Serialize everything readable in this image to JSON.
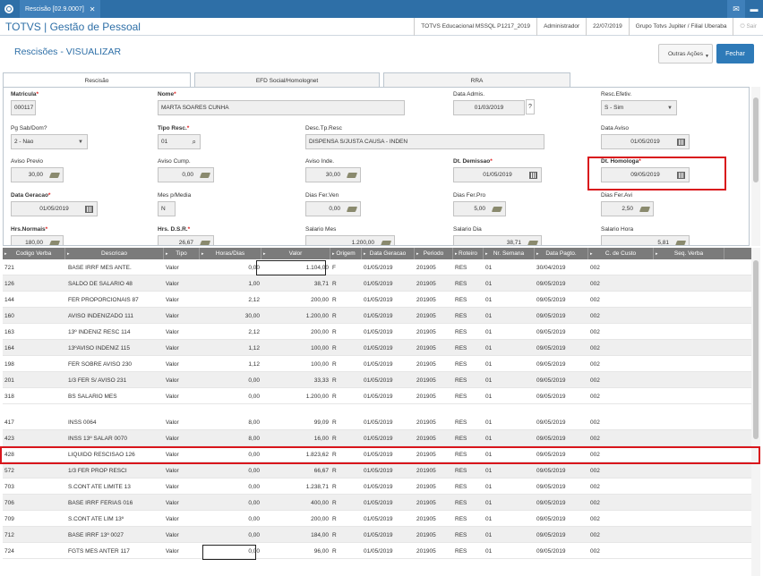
{
  "topbar": {
    "tab_label": "Rescisão [02.9.0007]"
  },
  "header": {
    "brand": "TOTVS | Gestão de Pessoal",
    "environment": "TOTVS Educacional MSSQL P1217_2019",
    "user": "Administrador",
    "date": "22/07/2019",
    "branch": "Grupo Totvs Jupiter / Filial Uberaba",
    "logout": "Sair"
  },
  "page": {
    "title": "Rescisões - VISUALIZAR"
  },
  "buttons": {
    "other_actions": "Outras Ações",
    "close": "Fechar"
  },
  "tabs": [
    "Rescisão",
    "EFD Social/Homolognet",
    "RRA"
  ],
  "form": {
    "matricula": {
      "label": "Matricula",
      "value": "000117"
    },
    "nome": {
      "label": "Nome",
      "value": "MARTA SOARES CUNHA"
    },
    "data_admis": {
      "label": "Data Admis.",
      "value": "01/03/2019",
      "help": "?"
    },
    "resc_efetiv": {
      "label": "Resc.Efetiv.",
      "value": "S - Sim"
    },
    "pg_sab_dom": {
      "label": "Pg Sab/Dom?",
      "value": "2 - Nao"
    },
    "tipo_resc": {
      "label": "Tipo Resc.",
      "value": "01"
    },
    "desc_tp_resc": {
      "label": "Desc.Tp.Resc",
      "value": "DISPENSA S/JUSTA CAUSA - INDEN"
    },
    "data_aviso": {
      "label": "Data Aviso",
      "value": "01/05/2019"
    },
    "aviso_previo": {
      "label": "Aviso Previo",
      "value": "30,00"
    },
    "aviso_cump": {
      "label": "Aviso Cump.",
      "value": "0,00"
    },
    "aviso_inde": {
      "label": "Aviso Inde.",
      "value": "30,00"
    },
    "dt_demissao": {
      "label": "Dt. Demissao",
      "value": "01/05/2019"
    },
    "dt_homologa": {
      "label": "Dt. Homologa",
      "value": "09/05/2019"
    },
    "data_geracao": {
      "label": "Data Geracao",
      "value": "01/05/2019"
    },
    "mes_media": {
      "label": "Mes p/Media",
      "value": "N"
    },
    "dias_fer_ven": {
      "label": "Dias Fer.Ven",
      "value": "0,00"
    },
    "dias_fer_pro": {
      "label": "Dias Fer.Pro",
      "value": "5,00"
    },
    "dias_fer_avi": {
      "label": "Dias Fer.Avi",
      "value": "2,50"
    },
    "hrs_normais": {
      "label": "Hrs.Normais",
      "value": "180,00"
    },
    "hrs_dsr": {
      "label": "Hrs. D.S.R.",
      "value": "26,67"
    },
    "salario_mes": {
      "label": "Salario Mes",
      "value": "1.200,00"
    },
    "salario_dia": {
      "label": "Salario Dia",
      "value": "38,71"
    },
    "salario_hora": {
      "label": "Salario Hora",
      "value": "5,81"
    }
  },
  "grid": {
    "columns": [
      "Codigo Verba",
      "Descricao",
      "Tipo",
      "Horas/Dias",
      "Valor",
      "Origem",
      "Data Geracao",
      "Periodo",
      "Roteiro",
      "Nr. Semana",
      "Data Pagto.",
      "C. de Custo",
      "Seq. Verba"
    ],
    "rows_top": [
      [
        "721",
        "BASE IRRF MES ANTE.",
        "Valor",
        "0,00",
        "1.104,00",
        "F",
        "01/05/2019",
        "201905",
        "RES",
        "01",
        "30/04/2019",
        "002",
        ""
      ],
      [
        "126",
        "SALDO DE SALARIO 48",
        "Valor",
        "1,00",
        "38,71",
        "R",
        "01/05/2019",
        "201905",
        "RES",
        "01",
        "09/05/2019",
        "002",
        ""
      ],
      [
        "144",
        "FER PROPORCIONAIS 87",
        "Valor",
        "2,12",
        "200,00",
        "R",
        "01/05/2019",
        "201905",
        "RES",
        "01",
        "09/05/2019",
        "002",
        ""
      ],
      [
        "160",
        "AVISO INDENIZADO 111",
        "Valor",
        "30,00",
        "1.200,00",
        "R",
        "01/05/2019",
        "201905",
        "RES",
        "01",
        "09/05/2019",
        "002",
        ""
      ],
      [
        "163",
        "13º INDENIZ RESC 114",
        "Valor",
        "2,12",
        "200,00",
        "R",
        "01/05/2019",
        "201905",
        "RES",
        "01",
        "09/05/2019",
        "002",
        ""
      ],
      [
        "164",
        "13ºAVISO INDENIZ 115",
        "Valor",
        "1,12",
        "100,00",
        "R",
        "01/05/2019",
        "201905",
        "RES",
        "01",
        "09/05/2019",
        "002",
        ""
      ],
      [
        "198",
        "FER SOBRE AVISO 230",
        "Valor",
        "1,12",
        "100,00",
        "R",
        "01/05/2019",
        "201905",
        "RES",
        "01",
        "09/05/2019",
        "002",
        ""
      ],
      [
        "201",
        "1/3 FER S/ AVISO 231",
        "Valor",
        "0,00",
        "33,33",
        "R",
        "01/05/2019",
        "201905",
        "RES",
        "01",
        "09/05/2019",
        "002",
        ""
      ],
      [
        "318",
        "BS SALARIO MES",
        "Valor",
        "0,00",
        "1.200,00",
        "R",
        "01/05/2019",
        "201905",
        "RES",
        "01",
        "09/05/2019",
        "002",
        ""
      ]
    ],
    "rows_bottom": [
      [
        "417",
        "INSS 0064",
        "Valor",
        "8,00",
        "99,09",
        "R",
        "01/05/2019",
        "201905",
        "RES",
        "01",
        "09/05/2019",
        "002",
        ""
      ],
      [
        "423",
        "INSS 13º SALAR 0070",
        "Valor",
        "8,00",
        "16,00",
        "R",
        "01/05/2019",
        "201905",
        "RES",
        "01",
        "09/05/2019",
        "002",
        ""
      ],
      [
        "428",
        "LIQUIDO RESCISAO 126",
        "Valor",
        "0,00",
        "1.823,62",
        "R",
        "01/05/2019",
        "201905",
        "RES",
        "01",
        "09/05/2019",
        "002",
        ""
      ],
      [
        "572",
        "1/3 FER PROP RESCI",
        "Valor",
        "0,00",
        "66,67",
        "R",
        "01/05/2019",
        "201905",
        "RES",
        "01",
        "09/05/2019",
        "002",
        ""
      ],
      [
        "703",
        "S.CONT ATE LIMITE 13",
        "Valor",
        "0,00",
        "1.238,71",
        "R",
        "01/05/2019",
        "201905",
        "RES",
        "01",
        "09/05/2019",
        "002",
        ""
      ],
      [
        "706",
        "BASE IRRF FERIAS 016",
        "Valor",
        "0,00",
        "400,00",
        "R",
        "01/05/2019",
        "201905",
        "RES",
        "01",
        "09/05/2019",
        "002",
        ""
      ],
      [
        "709",
        "S.CONT ATE LIM 13º",
        "Valor",
        "0,00",
        "200,00",
        "R",
        "01/05/2019",
        "201905",
        "RES",
        "01",
        "09/05/2019",
        "002",
        ""
      ],
      [
        "712",
        "BASE IRRF 13º 0027",
        "Valor",
        "0,00",
        "184,00",
        "R",
        "01/05/2019",
        "201905",
        "RES",
        "01",
        "09/05/2019",
        "002",
        ""
      ],
      [
        "724",
        "FGTS MES ANTER 117",
        "Valor",
        "0,00",
        "96,00",
        "R",
        "01/05/2019",
        "201905",
        "RES",
        "01",
        "09/05/2019",
        "002",
        ""
      ]
    ]
  },
  "colors": {
    "brand": "#2e6fa7",
    "highlight": "#d9161c",
    "header_gray": "#7b7b7b"
  }
}
